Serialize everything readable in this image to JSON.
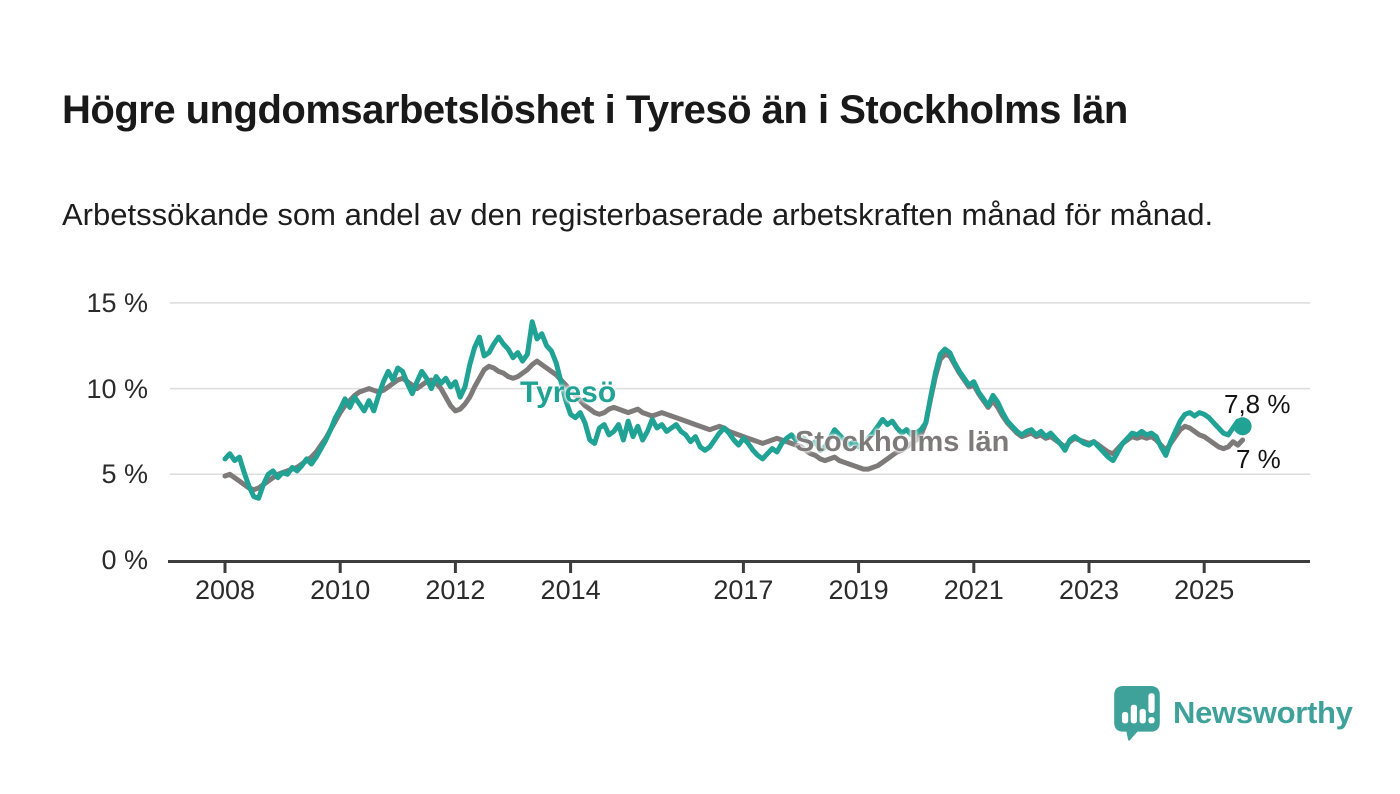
{
  "header": {
    "title": "Högre ungdomsarbetslöshet i Tyresö än i Stockholms län",
    "subtitle": "Arbetssökande som andel av den registerbaserade arbetskraften månad för månad."
  },
  "chart_data": {
    "type": "line",
    "unit": "%",
    "x_start_year": 2008,
    "points_per_year": 12,
    "ylim": [
      0,
      16.5
    ],
    "grid": true,
    "grid_color": "#dcdcdc",
    "axis_color": "#3d3d3d",
    "yticks": [
      {
        "value": 15,
        "label": "15 %"
      },
      {
        "value": 10,
        "label": "10 %"
      },
      {
        "value": 5,
        "label": "5 %"
      },
      {
        "value": 0,
        "label": "0 %"
      }
    ],
    "xticks": [
      {
        "year": 2008,
        "label": "2008"
      },
      {
        "year": 2010,
        "label": "2010"
      },
      {
        "year": 2012,
        "label": "2012"
      },
      {
        "year": 2014,
        "label": "2014"
      },
      {
        "year": 2017,
        "label": "2017"
      },
      {
        "year": 2019,
        "label": "2019"
      },
      {
        "year": 2021,
        "label": "2021"
      },
      {
        "year": 2023,
        "label": "2023"
      },
      {
        "year": 2025,
        "label": "2025"
      }
    ],
    "series": [
      {
        "id": "tyreso",
        "name": "Tyresö",
        "color": "#20a294",
        "end_label": "7,8 %",
        "end_value": 7.8,
        "end_dot": true,
        "values": [
          5.9,
          6.2,
          5.8,
          6.0,
          5.1,
          4.3,
          3.7,
          3.6,
          4.4,
          5.0,
          5.2,
          4.8,
          5.1,
          5.0,
          5.4,
          5.2,
          5.5,
          5.9,
          5.6,
          6.0,
          6.5,
          7.0,
          7.6,
          8.3,
          8.8,
          9.4,
          8.9,
          9.5,
          9.1,
          8.7,
          9.3,
          8.7,
          9.6,
          10.4,
          11.0,
          10.5,
          11.2,
          11.0,
          10.3,
          9.7,
          10.4,
          11.0,
          10.6,
          10.0,
          10.7,
          10.3,
          10.6,
          10.1,
          10.4,
          9.5,
          10.1,
          11.4,
          12.4,
          13.0,
          11.9,
          12.1,
          12.6,
          13.0,
          12.6,
          12.3,
          11.8,
          12.1,
          11.6,
          12.0,
          13.9,
          12.9,
          13.2,
          12.5,
          12.2,
          11.5,
          10.4,
          9.3,
          8.5,
          8.3,
          8.6,
          8.0,
          7.0,
          6.8,
          7.7,
          7.9,
          7.3,
          7.5,
          7.9,
          7.0,
          8.1,
          7.2,
          7.8,
          7.0,
          7.5,
          8.2,
          7.7,
          7.9,
          7.5,
          7.7,
          7.9,
          7.5,
          7.3,
          6.9,
          7.2,
          6.6,
          6.4,
          6.6,
          7.0,
          7.4,
          7.7,
          7.4,
          7.0,
          6.7,
          7.1,
          6.8,
          6.4,
          6.1,
          5.9,
          6.2,
          6.5,
          6.3,
          6.8,
          7.1,
          7.3,
          7.0,
          7.2,
          7.0,
          6.7,
          6.9,
          6.4,
          6.6,
          7.1,
          7.6,
          7.3,
          7.0,
          6.7,
          6.9,
          6.6,
          6.8,
          7.1,
          7.4,
          7.8,
          8.2,
          7.9,
          8.1,
          7.7,
          7.4,
          7.6,
          7.3,
          7.4,
          7.6,
          8.0,
          9.5,
          10.9,
          12.0,
          12.3,
          12.1,
          11.5,
          11.0,
          10.6,
          10.2,
          10.4,
          9.8,
          9.4,
          9.0,
          9.6,
          9.2,
          8.6,
          8.1,
          7.8,
          7.5,
          7.3,
          7.5,
          7.6,
          7.3,
          7.5,
          7.2,
          7.4,
          7.1,
          6.8,
          6.4,
          7.0,
          7.2,
          7.0,
          6.8,
          6.7,
          6.9,
          6.6,
          6.3,
          6.0,
          5.8,
          6.3,
          6.8,
          7.1,
          7.4,
          7.3,
          7.5,
          7.3,
          7.4,
          7.2,
          6.6,
          6.1,
          6.9,
          7.5,
          8.1,
          8.5,
          8.6,
          8.4,
          8.6,
          8.5,
          8.3,
          8.0,
          7.7,
          7.4,
          7.3,
          7.7,
          8.1,
          7.8
        ]
      },
      {
        "id": "stockholms-lan",
        "name": "Stockholms län",
        "color": "#7e7a7a",
        "end_label": "7 %",
        "end_value": 7.0,
        "end_dot": false,
        "values": [
          4.9,
          5.0,
          4.8,
          4.6,
          4.4,
          4.2,
          4.1,
          4.2,
          4.4,
          4.6,
          4.8,
          5.0,
          5.1,
          5.2,
          5.3,
          5.4,
          5.6,
          5.8,
          6.0,
          6.3,
          6.7,
          7.1,
          7.6,
          8.1,
          8.6,
          9.0,
          9.3,
          9.6,
          9.8,
          9.9,
          10.0,
          9.9,
          9.8,
          9.9,
          10.1,
          10.3,
          10.5,
          10.6,
          10.4,
          10.2,
          10.0,
          10.2,
          10.4,
          10.5,
          10.3,
          10.0,
          9.5,
          9.0,
          8.7,
          8.8,
          9.1,
          9.5,
          10.1,
          10.6,
          11.1,
          11.3,
          11.2,
          11.0,
          10.9,
          10.7,
          10.6,
          10.7,
          10.9,
          11.1,
          11.4,
          11.6,
          11.4,
          11.2,
          11.0,
          10.8,
          10.5,
          10.2,
          9.9,
          9.6,
          9.3,
          9.0,
          8.8,
          8.6,
          8.5,
          8.6,
          8.8,
          8.9,
          8.8,
          8.7,
          8.6,
          8.7,
          8.8,
          8.6,
          8.5,
          8.4,
          8.5,
          8.6,
          8.5,
          8.4,
          8.3,
          8.2,
          8.1,
          8.0,
          7.9,
          7.8,
          7.7,
          7.6,
          7.7,
          7.8,
          7.7,
          7.5,
          7.4,
          7.3,
          7.2,
          7.1,
          7.0,
          6.9,
          6.8,
          6.9,
          7.0,
          7.1,
          7.0,
          6.9,
          6.8,
          6.7,
          6.6,
          6.4,
          6.2,
          6.1,
          5.9,
          5.8,
          5.9,
          6.0,
          5.8,
          5.7,
          5.6,
          5.5,
          5.4,
          5.3,
          5.3,
          5.4,
          5.5,
          5.7,
          5.9,
          6.1,
          6.3,
          6.4,
          6.6,
          6.8,
          7.0,
          7.3,
          8.0,
          9.4,
          10.7,
          11.7,
          12.0,
          11.9,
          11.4,
          10.9,
          10.5,
          10.1,
          10.2,
          9.7,
          9.3,
          8.9,
          9.3,
          8.9,
          8.4,
          8.0,
          7.7,
          7.4,
          7.2,
          7.3,
          7.4,
          7.2,
          7.3,
          7.1,
          7.2,
          7.0,
          6.8,
          6.6,
          6.9,
          7.1,
          7.0,
          6.9,
          6.8,
          6.9,
          6.7,
          6.5,
          6.3,
          6.2,
          6.5,
          6.8,
          7.0,
          7.2,
          7.1,
          7.2,
          7.1,
          7.2,
          7.0,
          6.7,
          6.4,
          6.8,
          7.2,
          7.6,
          7.8,
          7.7,
          7.5,
          7.3,
          7.2,
          7.0,
          6.8,
          6.6,
          6.5,
          6.6,
          6.9,
          6.7,
          7.0
        ]
      }
    ]
  },
  "footer": {
    "brand": "Newsworthy",
    "brand_color": "#3fa29a"
  }
}
